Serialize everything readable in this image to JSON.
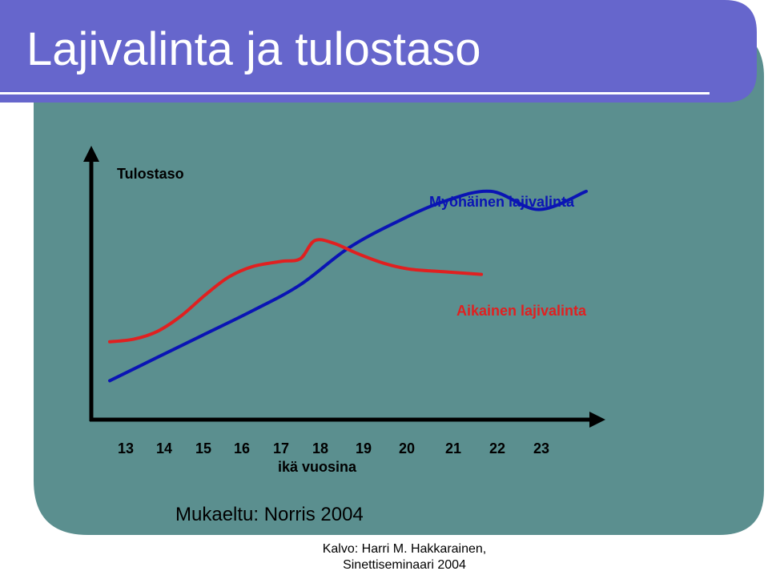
{
  "slide": {
    "title": "Lajivalinta ja tulostaso",
    "source": "Mukaeltu: Norris 2004",
    "credit_line1": "Kalvo:  Harri M. Hakkarainen,",
    "credit_line2": "Sinettiseminaari  2004",
    "colors": {
      "header": "#6666cc",
      "frame_border": "#5b8f8f",
      "late_series": "#0a14b4",
      "early_series": "#e02020",
      "axes": "#000000",
      "title_text": "#ffffff"
    }
  },
  "chart_data": {
    "type": "line",
    "ylabel": "Tulostaso",
    "xlabel": "ikä vuosina",
    "categories": [
      "13",
      "14",
      "15",
      "16",
      "17",
      "18",
      "19",
      "20",
      "21",
      "22",
      "23"
    ],
    "xlim": [
      13,
      24.3
    ],
    "ylim": [
      0,
      10
    ],
    "y_axis_ticks": "none",
    "grid": false,
    "series": [
      {
        "name": "Myöhäinen lajivalinta",
        "color": "#0a14b4",
        "x": [
          13,
          14,
          15,
          16,
          17,
          18,
          19,
          20,
          21,
          22,
          23
        ],
        "y": [
          1.5,
          2.4,
          3.3,
          4.2,
          5.2,
          6.6,
          7.6,
          8.4,
          8.8,
          8.1,
          8.8
        ]
      },
      {
        "name": "Aikainen lajivalinta",
        "color": "#e02020",
        "x": [
          13,
          13.5,
          14,
          14.5,
          15,
          15.5,
          16,
          16.6,
          17,
          17.3,
          17.7,
          18.2,
          18.8,
          19.3,
          20,
          20.8
        ],
        "y": [
          3.0,
          3.1,
          3.4,
          4.0,
          4.8,
          5.5,
          5.9,
          6.1,
          6.2,
          6.9,
          6.8,
          6.4,
          6.0,
          5.8,
          5.7,
          5.6
        ]
      }
    ]
  }
}
